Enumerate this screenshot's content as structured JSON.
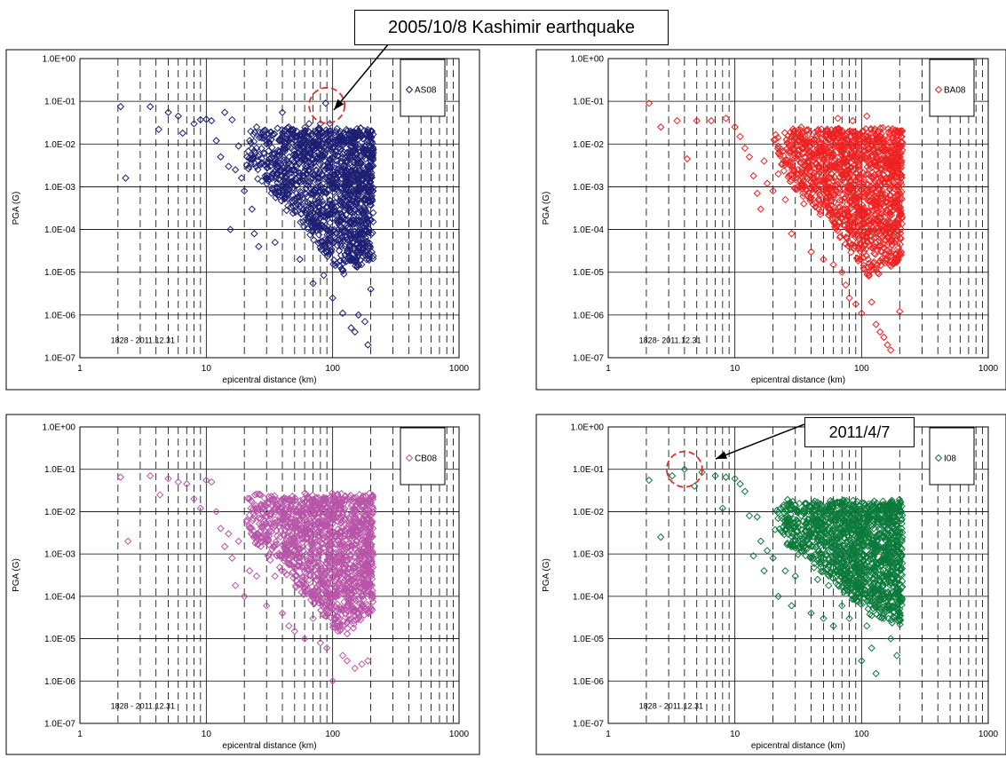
{
  "annotations": [
    {
      "text": "2005/10/8 Kashimir earthquake",
      "points_to": "AS08 panel point near 90 km, 0.1 G"
    },
    {
      "text": "2011/4/7",
      "points_to": "I08 panel point near 4 km, 0.1 G"
    }
  ],
  "colors": {
    "AS08": "#1c1f73",
    "BA08": "#ee2222",
    "CB08": "#b855a8",
    "I08": "#0b7a3b",
    "highlight_circle": "#e82b2b"
  },
  "chart_data": [
    {
      "type": "scatter",
      "panel": "top-left",
      "marker": "diamond",
      "legend": "AS08",
      "legend_position": "top-right",
      "period_label": "1828 - 2011.12.31",
      "xlabel": "epicentral distance (km)",
      "ylabel": "PGA (G)",
      "x_scale": "log",
      "y_scale": "log",
      "xlim": [
        1,
        1000
      ],
      "ylim": [
        1e-07,
        1
      ],
      "x_ticks": [
        "1",
        "10",
        "100",
        "1000"
      ],
      "y_ticks": [
        "1.0E-07",
        "1.0E-06",
        "1.0E-05",
        "1.0E-04",
        "1.0E-03",
        "1.0E-02",
        "1.0E-01",
        "1.0E+00"
      ],
      "highlight": {
        "x": 90,
        "y": 0.08
      },
      "points": [
        [
          2.1,
          0.075
        ],
        [
          2.3,
          0.0016
        ],
        [
          3.6,
          0.075
        ],
        [
          4.2,
          0.022
        ],
        [
          5,
          0.055
        ],
        [
          6,
          0.045
        ],
        [
          6.5,
          0.018
        ],
        [
          8,
          0.03
        ],
        [
          9,
          0.037
        ],
        [
          10,
          0.038
        ],
        [
          11,
          0.035
        ],
        [
          12,
          0.012
        ],
        [
          13,
          0.005
        ],
        [
          14,
          0.055
        ],
        [
          15,
          0.003
        ],
        [
          15.5,
          0.0001
        ],
        [
          16,
          0.037
        ],
        [
          17,
          0.0025
        ],
        [
          18,
          0.009
        ],
        [
          19,
          0.0016
        ],
        [
          20,
          0.0008
        ],
        [
          21,
          0.005
        ],
        [
          23,
          0.0003
        ],
        [
          24,
          8e-05
        ],
        [
          25,
          0.025
        ],
        [
          26,
          4e-05
        ],
        [
          30,
          0.01
        ],
        [
          32,
          0.003
        ],
        [
          35,
          5e-05
        ],
        [
          40,
          0.055
        ],
        [
          45,
          0.025
        ],
        [
          50,
          0.012
        ],
        [
          55,
          2e-05
        ],
        [
          60,
          0.004
        ],
        [
          65,
          0.03
        ],
        [
          70,
          5.5e-06
        ],
        [
          75,
          0.011
        ],
        [
          80,
          0.03
        ],
        [
          85,
          8.5e-06
        ],
        [
          88,
          0.09
        ],
        [
          95,
          0.03
        ],
        [
          100,
          2.5e-06
        ],
        [
          110,
          0.012
        ],
        [
          120,
          1.1e-06
        ],
        [
          130,
          0.02
        ],
        [
          140,
          5e-07
        ],
        [
          150,
          4e-07
        ],
        [
          160,
          1e-06
        ],
        [
          170,
          3e-05
        ],
        [
          180,
          7e-07
        ],
        [
          190,
          2e-07
        ],
        [
          200,
          4e-06
        ]
      ],
      "cloud": {
        "x_range": [
          20,
          210
        ],
        "y_upper": [
          0.02,
          0.025
        ],
        "y_lower_at_x": [
          [
            20,
            0.003
          ],
          [
            60,
            0.0001
          ],
          [
            120,
            8e-06
          ],
          [
            210,
            2e-05
          ]
        ]
      }
    },
    {
      "type": "scatter",
      "panel": "top-right",
      "marker": "diamond",
      "legend": "BA08",
      "legend_position": "top-right",
      "period_label": "1828- 2011.12.31",
      "xlabel": "epicentral distance (km)",
      "ylabel": "PGA (G)",
      "x_scale": "log",
      "y_scale": "log",
      "xlim": [
        1,
        1000
      ],
      "ylim": [
        1e-07,
        1
      ],
      "x_ticks": [
        "1",
        "10",
        "100",
        "1000"
      ],
      "y_ticks": [
        "1.0E-07",
        "1.0E-06",
        "1.0E-05",
        "1.0E-04",
        "1.0E-03",
        "1.0E-02",
        "1.0E-01",
        "1.0E+00"
      ],
      "points": [
        [
          2.1,
          0.09
        ],
        [
          2.6,
          0.025
        ],
        [
          3.5,
          0.035
        ],
        [
          4.2,
          0.0045
        ],
        [
          5,
          0.035
        ],
        [
          6.5,
          0.035
        ],
        [
          8.5,
          0.04
        ],
        [
          10,
          0.025
        ],
        [
          11,
          0.015
        ],
        [
          12,
          0.008
        ],
        [
          13,
          0.005
        ],
        [
          14,
          0.0018
        ],
        [
          15,
          0.0007
        ],
        [
          16,
          0.0003
        ],
        [
          17,
          0.004
        ],
        [
          18,
          0.0012
        ],
        [
          20,
          0.0008
        ],
        [
          22,
          0.002
        ],
        [
          25,
          0.0005
        ],
        [
          28,
          8e-05
        ],
        [
          30,
          0.015
        ],
        [
          32,
          0.002
        ],
        [
          35,
          0.0004
        ],
        [
          40,
          3e-05
        ],
        [
          45,
          0.003
        ],
        [
          50,
          2e-05
        ],
        [
          55,
          0.0003
        ],
        [
          60,
          1.5e-05
        ],
        [
          65,
          0.04
        ],
        [
          70,
          1e-05
        ],
        [
          75,
          5e-06
        ],
        [
          80,
          2.5e-06
        ],
        [
          85,
          0.035
        ],
        [
          90,
          1.8e-06
        ],
        [
          95,
          0.006
        ],
        [
          100,
          1.1e-06
        ],
        [
          110,
          0.045
        ],
        [
          120,
          2e-06
        ],
        [
          130,
          6e-07
        ],
        [
          140,
          4e-07
        ],
        [
          150,
          3e-07
        ],
        [
          160,
          2e-07
        ],
        [
          170,
          1.5e-07
        ],
        [
          180,
          0.005
        ],
        [
          190,
          2e-05
        ],
        [
          200,
          1.2e-06
        ]
      ],
      "cloud": {
        "x_range": [
          20,
          210
        ],
        "y_upper": [
          0.02,
          0.025
        ],
        "y_lower_at_x": [
          [
            20,
            0.003
          ],
          [
            60,
            0.0001
          ],
          [
            120,
            6e-06
          ],
          [
            210,
            2e-05
          ]
        ]
      }
    },
    {
      "type": "scatter",
      "panel": "bottom-left",
      "marker": "diamond",
      "legend": "CB08",
      "legend_position": "top-right",
      "period_label": "1828 - 2011.12.31",
      "xlabel": "epicentral distance (km)",
      "ylabel": "PGA (G)",
      "x_scale": "log",
      "y_scale": "log",
      "xlim": [
        1,
        1000
      ],
      "ylim": [
        1e-07,
        1
      ],
      "x_ticks": [
        "1",
        "10",
        "100",
        "1000"
      ],
      "y_ticks": [
        "1.0E-07",
        "1.0E-06",
        "1.0E-05",
        "1.0E-04",
        "1.0E-03",
        "1.0E-02",
        "1.0E-01",
        "1.0E+00"
      ],
      "points": [
        [
          2.1,
          0.065
        ],
        [
          2.4,
          0.002
        ],
        [
          3.6,
          0.07
        ],
        [
          4.3,
          0.025
        ],
        [
          5,
          0.06
        ],
        [
          6,
          0.05
        ],
        [
          7,
          0.045
        ],
        [
          8,
          0.02
        ],
        [
          9,
          0.012
        ],
        [
          10,
          0.055
        ],
        [
          11,
          0.05
        ],
        [
          12,
          0.01
        ],
        [
          13,
          0.004
        ],
        [
          14,
          0.0015
        ],
        [
          15,
          0.003
        ],
        [
          16,
          0.0008
        ],
        [
          17,
          0.00018
        ],
        [
          18,
          0.002
        ],
        [
          20,
          0.0001
        ],
        [
          22,
          0.0004
        ],
        [
          25,
          0.0003
        ],
        [
          30,
          6e-05
        ],
        [
          35,
          0.0003
        ],
        [
          40,
          4e-05
        ],
        [
          45,
          2e-05
        ],
        [
          50,
          1.5e-05
        ],
        [
          55,
          0.0002
        ],
        [
          60,
          1e-05
        ],
        [
          70,
          3e-05
        ],
        [
          80,
          8e-06
        ],
        [
          90,
          6e-06
        ],
        [
          100,
          1e-06
        ],
        [
          110,
          1.5e-05
        ],
        [
          120,
          4e-06
        ],
        [
          130,
          3e-06
        ],
        [
          150,
          2e-06
        ],
        [
          170,
          2.5e-06
        ],
        [
          190,
          3e-06
        ],
        [
          200,
          0.0004
        ]
      ],
      "cloud": {
        "x_range": [
          20,
          210
        ],
        "y_upper": [
          0.02,
          0.03
        ],
        "y_lower_at_x": [
          [
            20,
            0.003
          ],
          [
            60,
            0.0001
          ],
          [
            120,
            1e-05
          ],
          [
            210,
            5e-05
          ]
        ]
      }
    },
    {
      "type": "scatter",
      "panel": "bottom-right",
      "marker": "diamond",
      "legend": "I08",
      "legend_position": "top-right",
      "period_label": "1828 - 2011.12.31",
      "xlabel": "epicentral distance (km)",
      "ylabel": "PGA (G)",
      "x_scale": "log",
      "y_scale": "log",
      "xlim": [
        1,
        1000
      ],
      "ylim": [
        1e-07,
        1
      ],
      "x_ticks": [
        "1",
        "10",
        "100",
        "1000"
      ],
      "y_ticks": [
        "1.0E-07",
        "1.0E-06",
        "1.0E-05",
        "1.0E-04",
        "1.0E-03",
        "1.0E-02",
        "1.0E-01",
        "1.0E+00"
      ],
      "highlight": {
        "x": 4,
        "y": 0.1
      },
      "points": [
        [
          2.1,
          0.055
        ],
        [
          2.6,
          0.0025
        ],
        [
          3.2,
          0.07
        ],
        [
          4,
          0.1
        ],
        [
          4.8,
          0.04
        ],
        [
          5.5,
          0.085
        ],
        [
          7,
          0.07
        ],
        [
          8,
          0.012
        ],
        [
          8.5,
          0.065
        ],
        [
          10,
          0.06
        ],
        [
          11,
          0.045
        ],
        [
          12,
          0.03
        ],
        [
          13,
          0.008
        ],
        [
          14,
          0.0009
        ],
        [
          15,
          0.0075
        ],
        [
          16,
          0.002
        ],
        [
          17,
          0.0004
        ],
        [
          18,
          0.0012
        ],
        [
          20,
          0.0008
        ],
        [
          22,
          0.0001
        ],
        [
          25,
          0.0004
        ],
        [
          28,
          6e-05
        ],
        [
          30,
          0.0003
        ],
        [
          35,
          0.0015
        ],
        [
          40,
          4e-05
        ],
        [
          45,
          0.00025
        ],
        [
          50,
          3e-05
        ],
        [
          55,
          0.00018
        ],
        [
          60,
          2e-05
        ],
        [
          70,
          6e-05
        ],
        [
          80,
          3e-05
        ],
        [
          90,
          0.0004
        ],
        [
          100,
          3e-06
        ],
        [
          110,
          2e-05
        ],
        [
          120,
          6e-06
        ],
        [
          130,
          1.5e-06
        ],
        [
          150,
          3e-05
        ],
        [
          170,
          1e-05
        ],
        [
          190,
          4e-06
        ],
        [
          200,
          0.0002
        ]
      ],
      "cloud": {
        "x_range": [
          20,
          210
        ],
        "y_upper": [
          0.015,
          0.02
        ],
        "y_lower_at_x": [
          [
            20,
            0.003
          ],
          [
            60,
            0.0002
          ],
          [
            120,
            3e-05
          ],
          [
            210,
            2e-05
          ]
        ]
      }
    }
  ]
}
